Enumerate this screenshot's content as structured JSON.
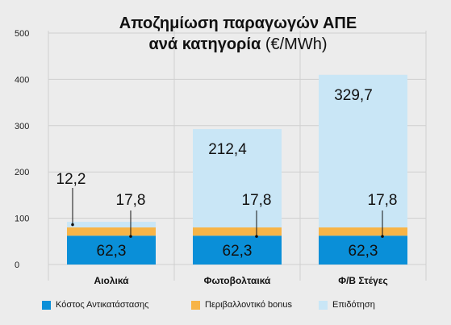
{
  "chart_data": {
    "type": "bar",
    "stacked": true,
    "title_line1": "Αποζημίωση παραγωγών ΑΠΕ",
    "title_line2": "ανά κατηγορία",
    "title_unit": "(€/MWh)",
    "categories": [
      "Αιολικά",
      "Φωτοβολταικά",
      "Φ/Β Στέγες"
    ],
    "series": [
      {
        "name": "Κόστος Αντικατάστασης",
        "color": "#0a8fd8",
        "values": [
          62.3,
          62.3,
          62.3
        ],
        "labels": [
          "62,3",
          "62,3",
          "62,3"
        ]
      },
      {
        "name": "Περιβαλλοντικό bonus",
        "color": "#f7b447",
        "values": [
          17.8,
          17.8,
          17.8
        ],
        "labels": [
          "17,8",
          "17,8",
          "17,8"
        ]
      },
      {
        "name": "Επιδότηση",
        "color": "#c9e6f6",
        "values": [
          12.2,
          212.4,
          329.7
        ],
        "labels": [
          "12,2",
          "212,4",
          "329,7"
        ]
      }
    ],
    "ylim": [
      0,
      500
    ],
    "yticks": [
      "0",
      "100",
      "200",
      "300",
      "400",
      "500"
    ],
    "grid": true,
    "legend_position": "bottom"
  }
}
